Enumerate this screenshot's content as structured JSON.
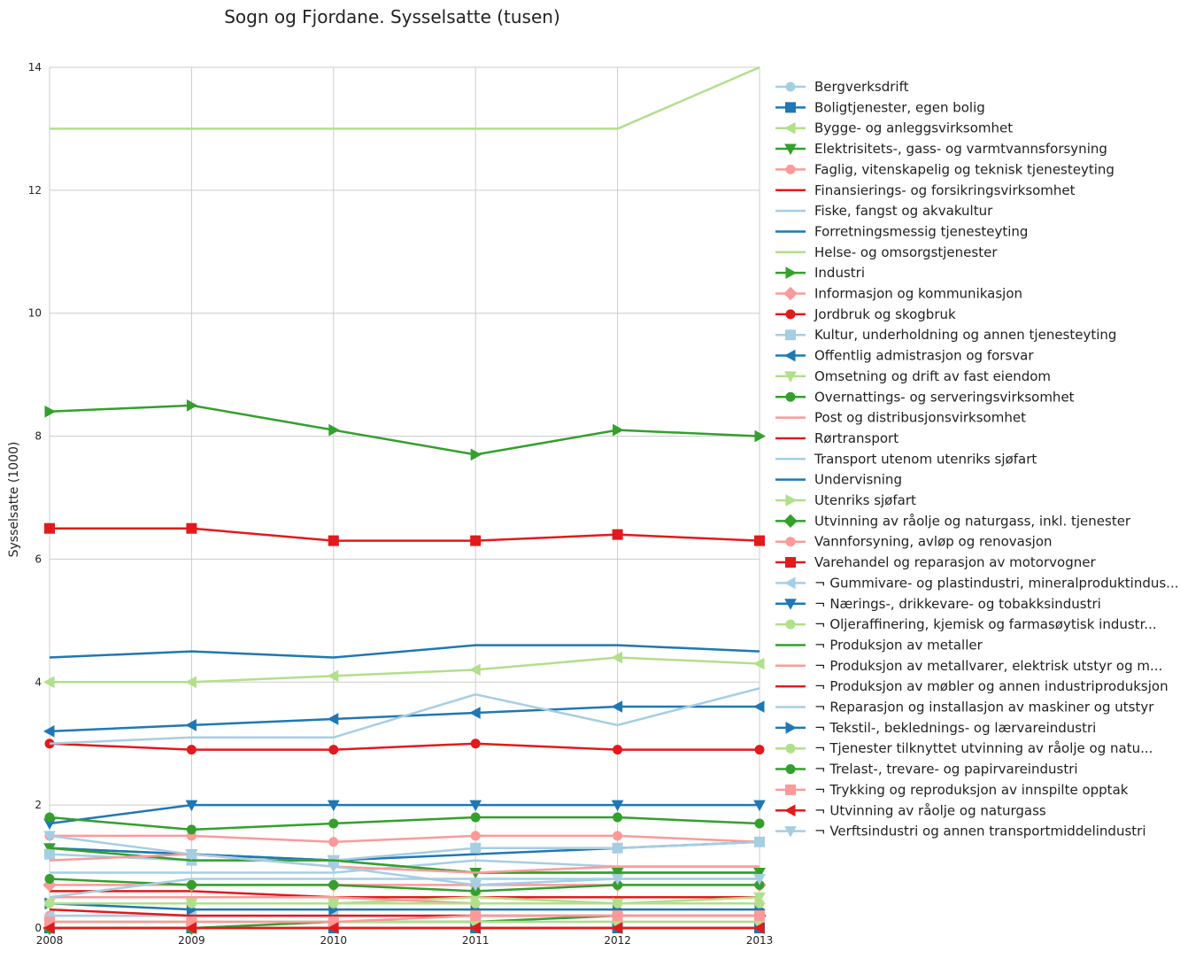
{
  "chart_data": {
    "type": "line",
    "title": "Sogn og Fjordane. Sysselsatte (tusen)",
    "ylabel": "Sysselsatte (1000)",
    "xlabel": "",
    "x": [
      2008,
      2009,
      2010,
      2011,
      2012,
      2013
    ],
    "xlim": [
      2008,
      2013
    ],
    "ylim": [
      0,
      14
    ],
    "yticks": [
      0,
      2,
      4,
      6,
      8,
      10,
      12,
      14
    ],
    "grid": true,
    "legend_position": "right, outside plot",
    "series": [
      {
        "name": "Bergverksdrift",
        "color": "#a6cee3",
        "marker": "circle",
        "values": [
          0.1,
          0.1,
          0.1,
          0.1,
          0.1,
          0.1
        ]
      },
      {
        "name": "Boligtjenester, egen bolig",
        "color": "#1f78b4",
        "marker": "square",
        "values": [
          0,
          0,
          0,
          0,
          0,
          0
        ]
      },
      {
        "name": "Bygge- og anleggsvirksomhet",
        "color": "#b2df8a",
        "marker": "triangle-left",
        "values": [
          4.0,
          4.0,
          4.1,
          4.2,
          4.4,
          4.3
        ]
      },
      {
        "name": "Elektrisitets-, gass- og varmtvannsforsyning",
        "color": "#33a02c",
        "marker": "triangle-down",
        "values": [
          1.3,
          1.2,
          1.1,
          0.9,
          0.9,
          0.9
        ]
      },
      {
        "name": "Faglig, vitenskapelig og teknisk tjenesteyting",
        "color": "#fb9a99",
        "marker": "circle",
        "values": [
          1.5,
          1.5,
          1.4,
          1.5,
          1.5,
          1.4
        ]
      },
      {
        "name": "Finansierings- og forsikringsvirksomhet",
        "color": "#e31a1c",
        "marker": "none",
        "values": [
          0.6,
          0.6,
          0.5,
          0.5,
          0.5,
          0.5
        ]
      },
      {
        "name": "Fiske, fangst og akvakultur",
        "color": "#a6cee3",
        "marker": "none",
        "values": [
          0.9,
          0.9,
          0.9,
          1.1,
          1.0,
          1.0
        ]
      },
      {
        "name": "Forretningsmessig tjenesteyting",
        "color": "#1f78b4",
        "marker": "none",
        "values": [
          1.3,
          1.2,
          1.1,
          1.2,
          1.3,
          1.4
        ]
      },
      {
        "name": "Helse- og omsorgstjenester",
        "color": "#b2df8a",
        "marker": "none",
        "values": [
          13.0,
          13.0,
          13.0,
          13.0,
          13.0,
          14.0
        ]
      },
      {
        "name": "Industri",
        "color": "#33a02c",
        "marker": "triangle-right",
        "values": [
          8.4,
          8.5,
          8.1,
          7.7,
          8.1,
          8.0
        ]
      },
      {
        "name": "Informasjon og kommunikasjon",
        "color": "#fb9a99",
        "marker": "diamond",
        "values": [
          0.7,
          0.7,
          0.7,
          0.7,
          0.7,
          0.7
        ]
      },
      {
        "name": "Jordbruk og skogbruk",
        "color": "#e31a1c",
        "marker": "circle",
        "values": [
          3.0,
          2.9,
          2.9,
          3.0,
          2.9,
          2.9
        ]
      },
      {
        "name": "Kultur, underholdning og annen tjenesteyting",
        "color": "#a6cee3",
        "marker": "square",
        "values": [
          1.2,
          1.1,
          1.1,
          1.3,
          1.3,
          1.4
        ]
      },
      {
        "name": "Offentlig admistrasjon og forsvar",
        "color": "#1f78b4",
        "marker": "triangle-left",
        "values": [
          3.2,
          3.3,
          3.4,
          3.5,
          3.6,
          3.6
        ]
      },
      {
        "name": "Omsetning og drift av fast eiendom",
        "color": "#b2df8a",
        "marker": "triangle-down",
        "values": [
          0.4,
          0.4,
          0.4,
          0.5,
          0.4,
          0.5
        ]
      },
      {
        "name": "Overnattings- og serveringsvirksomhet",
        "color": "#33a02c",
        "marker": "circle",
        "values": [
          0.8,
          0.7,
          0.7,
          0.6,
          0.7,
          0.7
        ]
      },
      {
        "name": "Post og distribusjonsvirksomhet",
        "color": "#fb9a99",
        "marker": "none",
        "values": [
          0.5,
          0.5,
          0.5,
          0.4,
          0.4,
          0.4
        ]
      },
      {
        "name": "Rørtransport",
        "color": "#e31a1c",
        "marker": "none",
        "values": [
          0,
          0,
          0,
          0,
          0,
          0
        ]
      },
      {
        "name": "Transport utenom utenriks sjøfart",
        "color": "#a6cee3",
        "marker": "none",
        "values": [
          3.0,
          3.1,
          3.1,
          3.8,
          3.3,
          3.9
        ]
      },
      {
        "name": "Undervisning",
        "color": "#1f78b4",
        "marker": "none",
        "values": [
          4.4,
          4.5,
          4.4,
          4.6,
          4.6,
          4.5
        ]
      },
      {
        "name": "Utenriks sjøfart",
        "color": "#b2df8a",
        "marker": "triangle-right",
        "values": [
          0.4,
          0.4,
          0.4,
          0.4,
          0.4,
          0.4
        ]
      },
      {
        "name": "Utvinning av råolje og naturgass, inkl. tjenester",
        "color": "#33a02c",
        "marker": "diamond",
        "values": [
          0,
          0,
          0.1,
          0.1,
          0.2,
          0.2
        ]
      },
      {
        "name": "Vannforsyning, avløp og renovasjon",
        "color": "#fb9a99",
        "marker": "circle",
        "values": [
          0.2,
          0.2,
          0.2,
          0.2,
          0.2,
          0.2
        ]
      },
      {
        "name": "Varehandel og reparasjon av motorvogner",
        "color": "#e31a1c",
        "marker": "square",
        "values": [
          6.5,
          6.5,
          6.3,
          6.3,
          6.4,
          6.3
        ]
      },
      {
        "name": "¬ Gummivare- og plastindustri, mineralproduktindus...",
        "color": "#a6cee3",
        "marker": "triangle-left",
        "values": [
          0.2,
          0.2,
          0.2,
          0.2,
          0.2,
          0.2
        ]
      },
      {
        "name": "¬ Nærings-, drikkevare- og tobakksindustri",
        "color": "#1f78b4",
        "marker": "triangle-down",
        "values": [
          1.7,
          2.0,
          2.0,
          2.0,
          2.0,
          2.0
        ]
      },
      {
        "name": "¬ Oljeraffinering, kjemisk og farmasøytisk industr...",
        "color": "#b2df8a",
        "marker": "circle",
        "values": [
          0.1,
          0.1,
          0.1,
          0.1,
          0.1,
          0.1
        ]
      },
      {
        "name": "¬ Produksjon av metaller",
        "color": "#33a02c",
        "marker": "none",
        "values": [
          1.3,
          1.1,
          1.1,
          0.9,
          0.9,
          0.9
        ]
      },
      {
        "name": "¬ Produksjon av metallvarer, elektrisk utstyr og m...",
        "color": "#fb9a99",
        "marker": "none",
        "values": [
          1.1,
          1.2,
          1.0,
          0.9,
          1.0,
          1.0
        ]
      },
      {
        "name": "¬ Produksjon av møbler og annen industriproduksjon",
        "color": "#e31a1c",
        "marker": "none",
        "values": [
          0.3,
          0.2,
          0.2,
          0.2,
          0.2,
          0.2
        ]
      },
      {
        "name": "¬ Reparasjon og installasjon av maskiner og utstyr",
        "color": "#a6cee3",
        "marker": "none",
        "values": [
          0.5,
          0.8,
          0.8,
          0.8,
          0.8,
          0.8
        ]
      },
      {
        "name": "¬ Tekstil-, beklednings- og lærvareindustri",
        "color": "#1f78b4",
        "marker": "triangle-right",
        "values": [
          0.4,
          0.3,
          0.3,
          0.3,
          0.3,
          0.3
        ]
      },
      {
        "name": "¬ Tjenester tilknyttet utvinning av råolje og natu...",
        "color": "#b2df8a",
        "marker": "circle",
        "values": [
          0.4,
          0.4,
          0.4,
          0.4,
          0.4,
          0.4
        ]
      },
      {
        "name": "¬ Trelast-, trevare- og papirvareindustri",
        "color": "#33a02c",
        "marker": "circle",
        "values": [
          1.8,
          1.6,
          1.7,
          1.8,
          1.8,
          1.7
        ]
      },
      {
        "name": "¬ Trykking og reproduksjon av innspilte opptak",
        "color": "#fb9a99",
        "marker": "square",
        "values": [
          0.1,
          0.1,
          0.1,
          0.2,
          0.2,
          0.2
        ]
      },
      {
        "name": "¬ Utvinning av råolje og naturgass",
        "color": "#e31a1c",
        "marker": "triangle-left",
        "values": [
          0,
          0,
          0,
          0,
          0,
          0
        ]
      },
      {
        "name": "¬ Verftsindustri og annen transportmiddelindustri",
        "color": "#a6cee3",
        "marker": "triangle-down",
        "values": [
          1.5,
          1.2,
          1.0,
          0.7,
          0.8,
          0.8
        ]
      }
    ]
  }
}
